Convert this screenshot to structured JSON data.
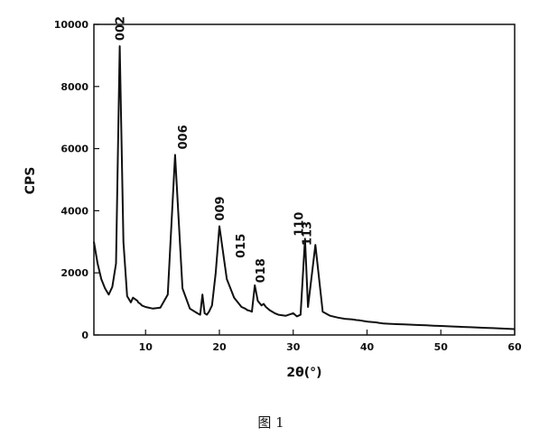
{
  "chart_data": {
    "type": "line",
    "xlabel": "2θ(°)",
    "ylabel": "CPS",
    "xlim": [
      3,
      60
    ],
    "ylim": [
      0,
      10000
    ],
    "x_ticks": [
      10,
      20,
      30,
      40,
      50,
      60
    ],
    "y_ticks": [
      0,
      2000,
      4000,
      6000,
      8000,
      10000
    ],
    "x_tick_labels": [
      "10",
      "20",
      "30",
      "40",
      "50",
      "60"
    ],
    "y_tick_labels": [
      "0",
      "2000",
      "4000",
      "6000",
      "8000",
      "10000"
    ],
    "grid": false,
    "legend": "none",
    "series": [
      {
        "x": [
          3.0,
          3.5,
          4.0,
          4.5,
          5.0,
          5.5,
          6.0,
          6.5,
          7.0,
          7.5,
          8.0,
          8.3,
          8.6,
          8.9,
          9.0,
          9.3,
          9.5,
          10.0,
          11.0,
          12.0,
          13.0,
          14.0,
          15.0,
          16.0,
          17.0,
          17.4,
          17.7,
          18.0,
          18.3,
          18.6,
          19.0,
          19.5,
          20.0,
          21.0,
          22.0,
          23.0,
          23.5,
          23.8,
          24.1,
          24.4,
          24.8,
          25.2,
          25.7,
          26.0,
          26.3,
          26.8,
          27.5,
          28.0,
          29.0,
          30.0,
          30.5,
          31.0,
          31.6,
          32.0,
          33.0,
          34.0,
          35.0,
          36.0,
          37.0,
          38.0,
          38.6,
          39.0,
          39.3,
          39.5,
          39.8,
          40.1,
          40.6,
          41.0,
          41.4,
          41.6,
          41.9,
          42.2,
          43.0,
          44.0,
          45.0,
          46.0,
          47.0,
          48.0,
          49.0,
          50.0,
          51.0,
          52.0,
          53.0,
          54.0,
          55.0,
          56.0,
          57.0,
          58.0,
          59.0,
          60.0
        ],
        "y": [
          3000,
          2300,
          1800,
          1500,
          1300,
          1550,
          2300,
          9300,
          3000,
          1250,
          1050,
          1200,
          1150,
          1100,
          1050,
          1000,
          950,
          900,
          850,
          880,
          1300,
          5800,
          1500,
          850,
          700,
          650,
          1300,
          700,
          650,
          750,
          950,
          2000,
          3500,
          1800,
          1200,
          900,
          850,
          800,
          780,
          750,
          1600,
          1100,
          950,
          1000,
          900,
          800,
          700,
          650,
          620,
          700,
          600,
          650,
          3100,
          900,
          2900,
          750,
          620,
          560,
          520,
          500,
          480,
          470,
          460,
          450,
          440,
          430,
          420,
          410,
          400,
          390,
          380,
          370,
          360,
          350,
          340,
          330,
          320,
          310,
          300,
          290,
          280,
          270,
          260,
          250,
          240,
          230,
          220,
          210,
          200,
          190
        ]
      }
    ],
    "peak_labels": [
      {
        "x": 6.5,
        "y": 9300,
        "text": "002"
      },
      {
        "x": 15.0,
        "y": 5800,
        "text": "006"
      },
      {
        "x": 20.0,
        "y": 3500,
        "text": "009"
      },
      {
        "x": 22.8,
        "y": 2300,
        "text": "015"
      },
      {
        "x": 25.5,
        "y": 1500,
        "text": "018"
      },
      {
        "x": 30.7,
        "y": 3000,
        "text": "110"
      },
      {
        "x": 31.8,
        "y": 2700,
        "text": "113"
      }
    ]
  },
  "caption": "图 1"
}
